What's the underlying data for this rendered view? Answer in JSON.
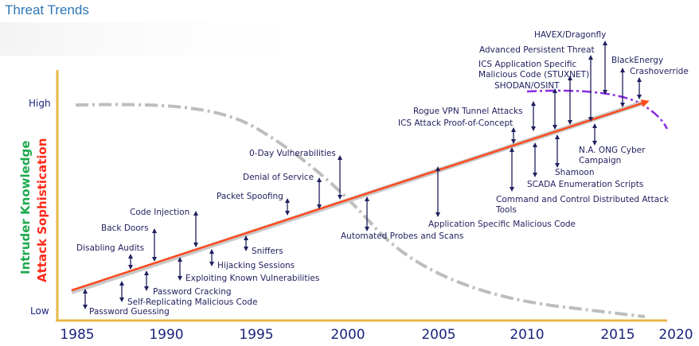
{
  "title": "Threat Trends",
  "axes": {
    "y_title_line1": "Intruder Knowledge",
    "y_title_line2": "Attack Sophistication",
    "y_high": "High",
    "y_low": "Low",
    "x_ticks": [
      "1985",
      "1990",
      "1995",
      "2000",
      "2005",
      "2010",
      "2015",
      "2020"
    ]
  },
  "colors": {
    "trend_line": "#ff4a1c",
    "axis": "#e8b84a",
    "knowledge_curve": "#b8b8b8",
    "recent_curve": "#8a2be2",
    "arrow": "#1f1f5e"
  },
  "labels": [
    {
      "text": "Password Guessing",
      "anchor": "start"
    },
    {
      "text": "Self-Replicating Malicious Code",
      "anchor": "start"
    },
    {
      "text": "Password Cracking",
      "anchor": "start"
    },
    {
      "text": "Exploiting Known Vulnerabilities",
      "anchor": "start"
    },
    {
      "text": "Disabling Audits",
      "anchor": "start"
    },
    {
      "text": "Back Doors",
      "anchor": "start"
    },
    {
      "text": "Hijacking Sessions",
      "anchor": "start"
    },
    {
      "text": "Code Injection",
      "anchor": "start"
    },
    {
      "text": "Sniffers",
      "anchor": "start"
    },
    {
      "text": "Packet Spoofing",
      "anchor": "start"
    },
    {
      "text": "Denial of Service",
      "anchor": "start"
    },
    {
      "text": "0-Day Vulnerabilities",
      "anchor": "start"
    },
    {
      "text": "Automated Probes and Scans",
      "anchor": "start"
    },
    {
      "text": "Application Specific Malicious Code",
      "anchor": "start"
    },
    {
      "text": "ICS Attack Proof-of-Concept",
      "anchor": "start"
    },
    {
      "text": "Rogue VPN Tunnel Attacks",
      "anchor": "start"
    },
    {
      "text": "Command and Control Distributed Attack",
      "anchor": "start"
    },
    {
      "text": "Tools",
      "anchor": "start"
    },
    {
      "text": "SCADA Enumeration Scripts",
      "anchor": "start"
    },
    {
      "text": "Shamoon",
      "anchor": "start"
    },
    {
      "text": "N.A. ONG Cyber",
      "anchor": "start"
    },
    {
      "text": "Campaign",
      "anchor": "start"
    },
    {
      "text": "SHODAN/OSINT",
      "anchor": "start"
    },
    {
      "text": "ICS Application Specific",
      "anchor": "start"
    },
    {
      "text": "Malicious Code (STUXNET)",
      "anchor": "start"
    },
    {
      "text": "Advanced Persistent Threat",
      "anchor": "start"
    },
    {
      "text": "HAVEX/Dragonfly",
      "anchor": "start"
    },
    {
      "text": "BlackEnergy",
      "anchor": "start"
    },
    {
      "text": "Crashoverride",
      "anchor": "start"
    }
  ]
}
